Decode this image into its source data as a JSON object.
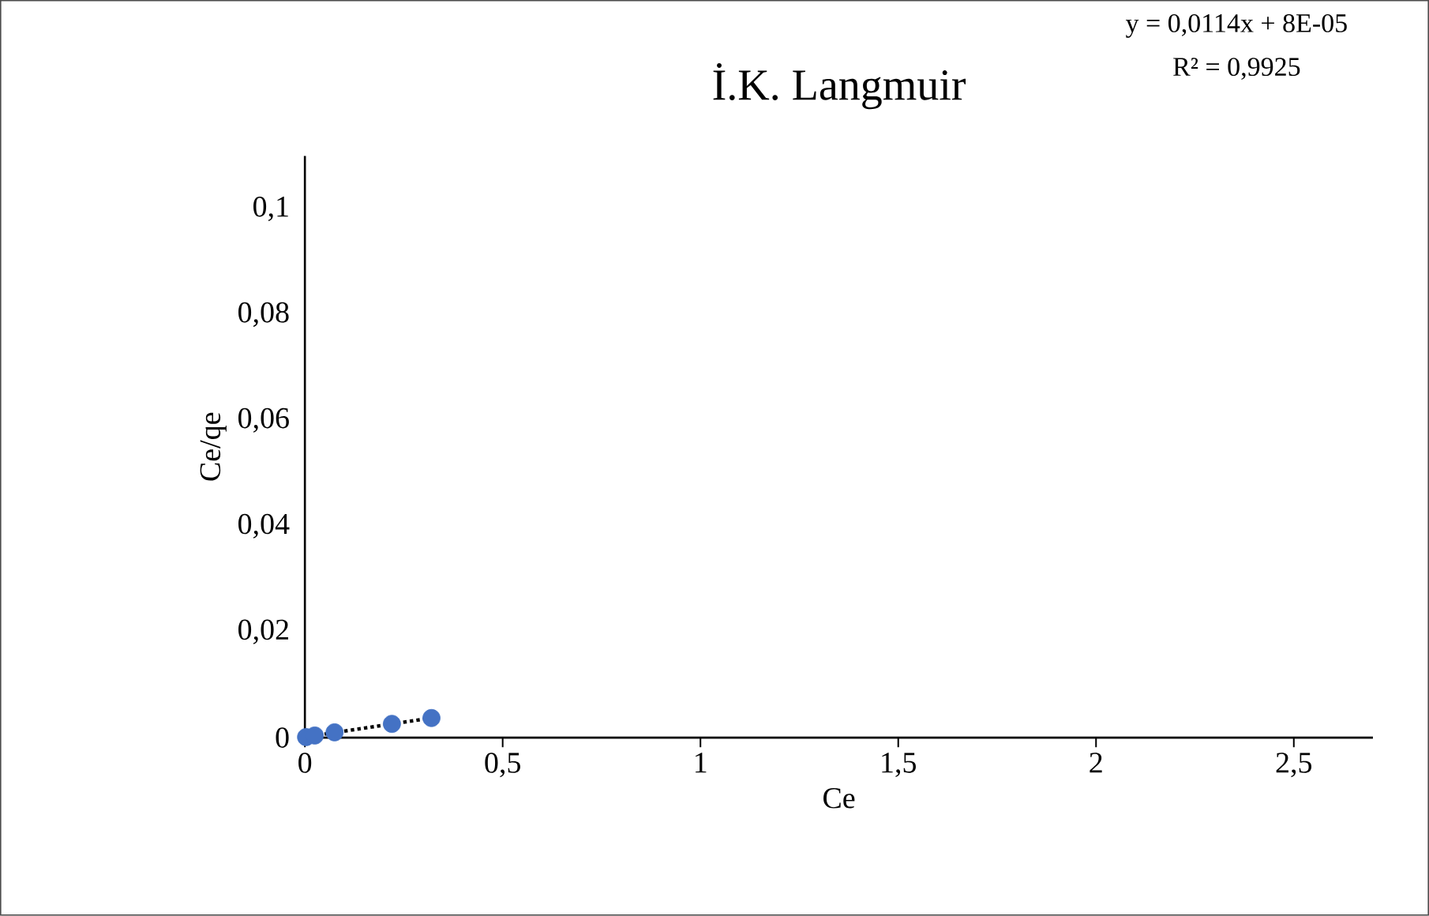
{
  "chart_data": {
    "type": "scatter",
    "title": "İ.K. Langmuir",
    "xlabel": "Ce",
    "ylabel": "Ce/qe",
    "annotations": [
      "y = 0,0114x + 8E-05",
      "R² = 0,9925"
    ],
    "xlim": [
      0,
      2.7
    ],
    "ylim": [
      0,
      0.11
    ],
    "xticks": [
      0,
      {
        "value": 0.5,
        "label": "0,5"
      },
      1,
      {
        "value": 1.5,
        "label": "1,5"
      },
      2,
      {
        "value": 2.5,
        "label": "2,5"
      }
    ],
    "yticks": [
      0,
      {
        "value": 0.02,
        "label": "0,02"
      },
      {
        "value": 0.04,
        "label": "0,04"
      },
      {
        "value": 0.06,
        "label": "0,06"
      },
      {
        "value": 0.08,
        "label": "0,08"
      },
      {
        "value": 0.1,
        "label": "0,1"
      }
    ],
    "grid": false,
    "series": [
      {
        "color": "#4472c4",
        "marker": "circle",
        "x": [
          0.003,
          0.025,
          0.075,
          0.22,
          0.32
        ],
        "values": [
          0.0001,
          0.0004,
          0.001,
          0.0026,
          0.0037
        ]
      },
      {
        "type": "line",
        "color": "#000000",
        "marker": "none",
        "line_style": "dotted",
        "x": [
          0,
          0.32
        ],
        "values": [
          0.0001,
          0.0037
        ]
      }
    ]
  }
}
